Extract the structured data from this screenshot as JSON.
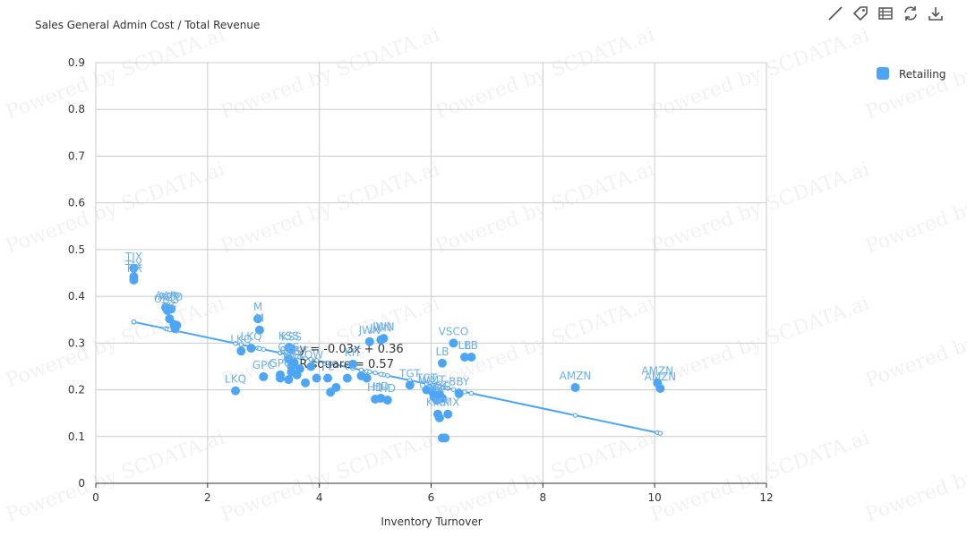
{
  "toolbar": {
    "icons": [
      "line-chart-icon",
      "tag-icon",
      "data-view-icon",
      "restore-icon",
      "download-icon"
    ]
  },
  "watermark_text": "Powered by SCDATA.ai",
  "colors": {
    "series": "#4da6f5",
    "label": "#6cb0ee",
    "axis": "#333333",
    "grid": "#cccccc"
  },
  "chart_data": {
    "type": "scatter",
    "title": "Sales General Admin Cost / Total Revenue",
    "xlabel": "Inventory Turnover",
    "ylabel": "",
    "xlim": [
      0,
      12
    ],
    "ylim": [
      0,
      0.9
    ],
    "xticks": [
      "0",
      "2",
      "4",
      "6",
      "8",
      "10",
      "12"
    ],
    "yticks": [
      "0",
      "0.1",
      "0.2",
      "0.3",
      "0.4",
      "0.5",
      "0.6",
      "0.7",
      "0.8",
      "0.9"
    ],
    "grid": true,
    "legend": {
      "position": "top-right",
      "entries": [
        "Retailing"
      ]
    },
    "series": [
      {
        "name": "Retailing",
        "points": [
          {
            "x": 0.68,
            "y": 0.46,
            "label": "TJX"
          },
          {
            "x": 0.68,
            "y": 0.442,
            "label": "TJX"
          },
          {
            "x": 0.68,
            "y": 0.435,
            "label": "TJX"
          },
          {
            "x": 1.25,
            "y": 0.376,
            "label": "AAP"
          },
          {
            "x": 1.3,
            "y": 0.374,
            "label": "AAP"
          },
          {
            "x": 1.35,
            "y": 0.373,
            "label": "AZO"
          },
          {
            "x": 1.28,
            "y": 0.37,
            "label": "ORLY"
          },
          {
            "x": 1.32,
            "y": 0.352,
            "label": "TIF"
          },
          {
            "x": 1.4,
            "y": 0.34,
            "label": ""
          },
          {
            "x": 1.45,
            "y": 0.338,
            "label": ""
          },
          {
            "x": 1.42,
            "y": 0.332,
            "label": ""
          },
          {
            "x": 2.5,
            "y": 0.198,
            "label": "LKQ"
          },
          {
            "x": 2.6,
            "y": 0.283,
            "label": "LKQ"
          },
          {
            "x": 2.78,
            "y": 0.289,
            "label": "LKQ"
          },
          {
            "x": 2.9,
            "y": 0.352,
            "label": "M"
          },
          {
            "x": 2.93,
            "y": 0.328,
            "label": "M"
          },
          {
            "x": 3.0,
            "y": 0.228,
            "label": "GPC"
          },
          {
            "x": 3.3,
            "y": 0.232,
            "label": "GPC"
          },
          {
            "x": 3.3,
            "y": 0.225,
            "label": ""
          },
          {
            "x": 3.45,
            "y": 0.29,
            "label": "KSS"
          },
          {
            "x": 3.5,
            "y": 0.288,
            "label": "KSS"
          },
          {
            "x": 3.45,
            "y": 0.266,
            "label": "GPS"
          },
          {
            "x": 3.55,
            "y": 0.258,
            "label": "ROST"
          },
          {
            "x": 3.5,
            "y": 0.25,
            "label": "JCP"
          },
          {
            "x": 3.5,
            "y": 0.238,
            "label": ""
          },
          {
            "x": 3.45,
            "y": 0.222,
            "label": ""
          },
          {
            "x": 3.6,
            "y": 0.232,
            "label": ""
          },
          {
            "x": 3.65,
            "y": 0.245,
            "label": ""
          },
          {
            "x": 3.75,
            "y": 0.215,
            "label": ""
          },
          {
            "x": 3.85,
            "y": 0.25,
            "label": "LOW"
          },
          {
            "x": 3.95,
            "y": 0.225,
            "label": ""
          },
          {
            "x": 4.15,
            "y": 0.225,
            "label": "FL"
          },
          {
            "x": 4.2,
            "y": 0.195,
            "label": ""
          },
          {
            "x": 4.3,
            "y": 0.205,
            "label": ""
          },
          {
            "x": 4.5,
            "y": 0.225,
            "label": ""
          },
          {
            "x": 4.6,
            "y": 0.255,
            "label": "KIT"
          },
          {
            "x": 4.75,
            "y": 0.23,
            "label": ""
          },
          {
            "x": 4.85,
            "y": 0.225,
            "label": ""
          },
          {
            "x": 4.9,
            "y": 0.303,
            "label": "JWN"
          },
          {
            "x": 5.1,
            "y": 0.307,
            "label": "JWN"
          },
          {
            "x": 5.15,
            "y": 0.31,
            "label": "JWN"
          },
          {
            "x": 5.0,
            "y": 0.18,
            "label": "HD"
          },
          {
            "x": 5.1,
            "y": 0.182,
            "label": "HD"
          },
          {
            "x": 5.22,
            "y": 0.178,
            "label": "HD"
          },
          {
            "x": 5.62,
            "y": 0.21,
            "label": "TGT"
          },
          {
            "x": 5.92,
            "y": 0.2,
            "label": "TGT"
          },
          {
            "x": 6.02,
            "y": 0.196,
            "label": "WMT"
          },
          {
            "x": 6.05,
            "y": 0.185,
            "label": "COST"
          },
          {
            "x": 6.1,
            "y": 0.178,
            "label": "KR"
          },
          {
            "x": 6.15,
            "y": 0.19,
            "label": ""
          },
          {
            "x": 6.2,
            "y": 0.182,
            "label": "DG"
          },
          {
            "x": 6.12,
            "y": 0.148,
            "label": "KMX"
          },
          {
            "x": 6.15,
            "y": 0.14,
            "label": ""
          },
          {
            "x": 6.3,
            "y": 0.148,
            "label": "KMX"
          },
          {
            "x": 6.2,
            "y": 0.097,
            "label": ""
          },
          {
            "x": 6.25,
            "y": 0.097,
            "label": ""
          },
          {
            "x": 6.2,
            "y": 0.257,
            "label": "LB"
          },
          {
            "x": 6.4,
            "y": 0.3,
            "label": "VSCO"
          },
          {
            "x": 6.6,
            "y": 0.27,
            "label": "LB"
          },
          {
            "x": 6.72,
            "y": 0.27,
            "label": "LB"
          },
          {
            "x": 6.5,
            "y": 0.192,
            "label": "BBY"
          },
          {
            "x": 8.58,
            "y": 0.205,
            "label": "AMZN"
          },
          {
            "x": 10.05,
            "y": 0.215,
            "label": "AMZN"
          },
          {
            "x": 10.1,
            "y": 0.203,
            "label": "AMZN"
          }
        ]
      }
    ],
    "trendline": {
      "equation": "y = -0.03x + 0.36",
      "r_squared_label": "R square = 0.57",
      "slope": -0.0253,
      "intercept": 0.3625,
      "x_range": [
        0.68,
        10.1
      ]
    }
  }
}
